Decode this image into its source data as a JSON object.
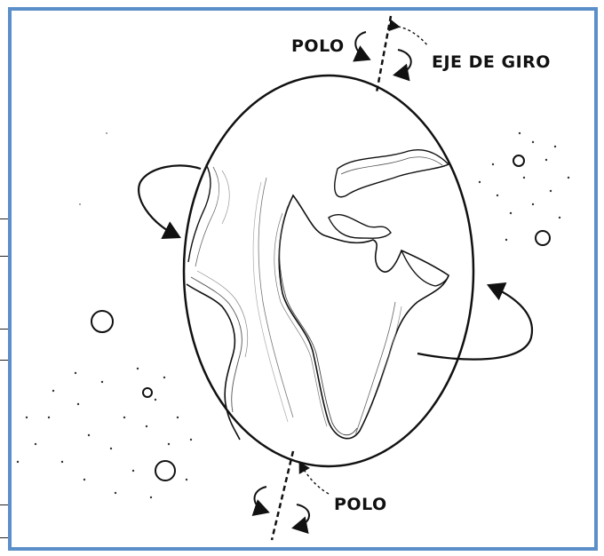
{
  "labels": {
    "pole_top": "POLO",
    "axis": "EJE DE GIRO",
    "pole_bottom": "POLO"
  },
  "colors": {
    "frame_border": "#5b8fc9",
    "ink": "#111111",
    "background": "#ffffff"
  }
}
